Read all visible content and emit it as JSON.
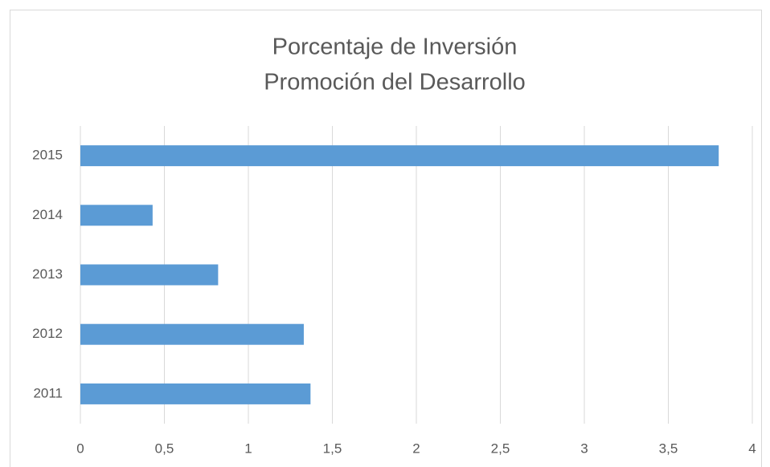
{
  "chart_data": {
    "type": "bar",
    "orientation": "horizontal",
    "title": [
      "Porcentaje de Inversión",
      "Promoción del Desarrollo"
    ],
    "categories": [
      "2011",
      "2012",
      "2013",
      "2014",
      "2015"
    ],
    "values": [
      1.37,
      1.33,
      0.82,
      0.43,
      3.8
    ],
    "color": "#5b9bd5",
    "xlim": [
      0,
      4
    ],
    "xticks": [
      0,
      {
        "value": 0.5,
        "label": "0,5"
      },
      1,
      {
        "value": 1.5,
        "label": "1,5"
      },
      2,
      {
        "value": 2.5,
        "label": "2,5"
      },
      3,
      {
        "value": 3.5,
        "label": "3,5"
      },
      4
    ],
    "grid": true
  }
}
